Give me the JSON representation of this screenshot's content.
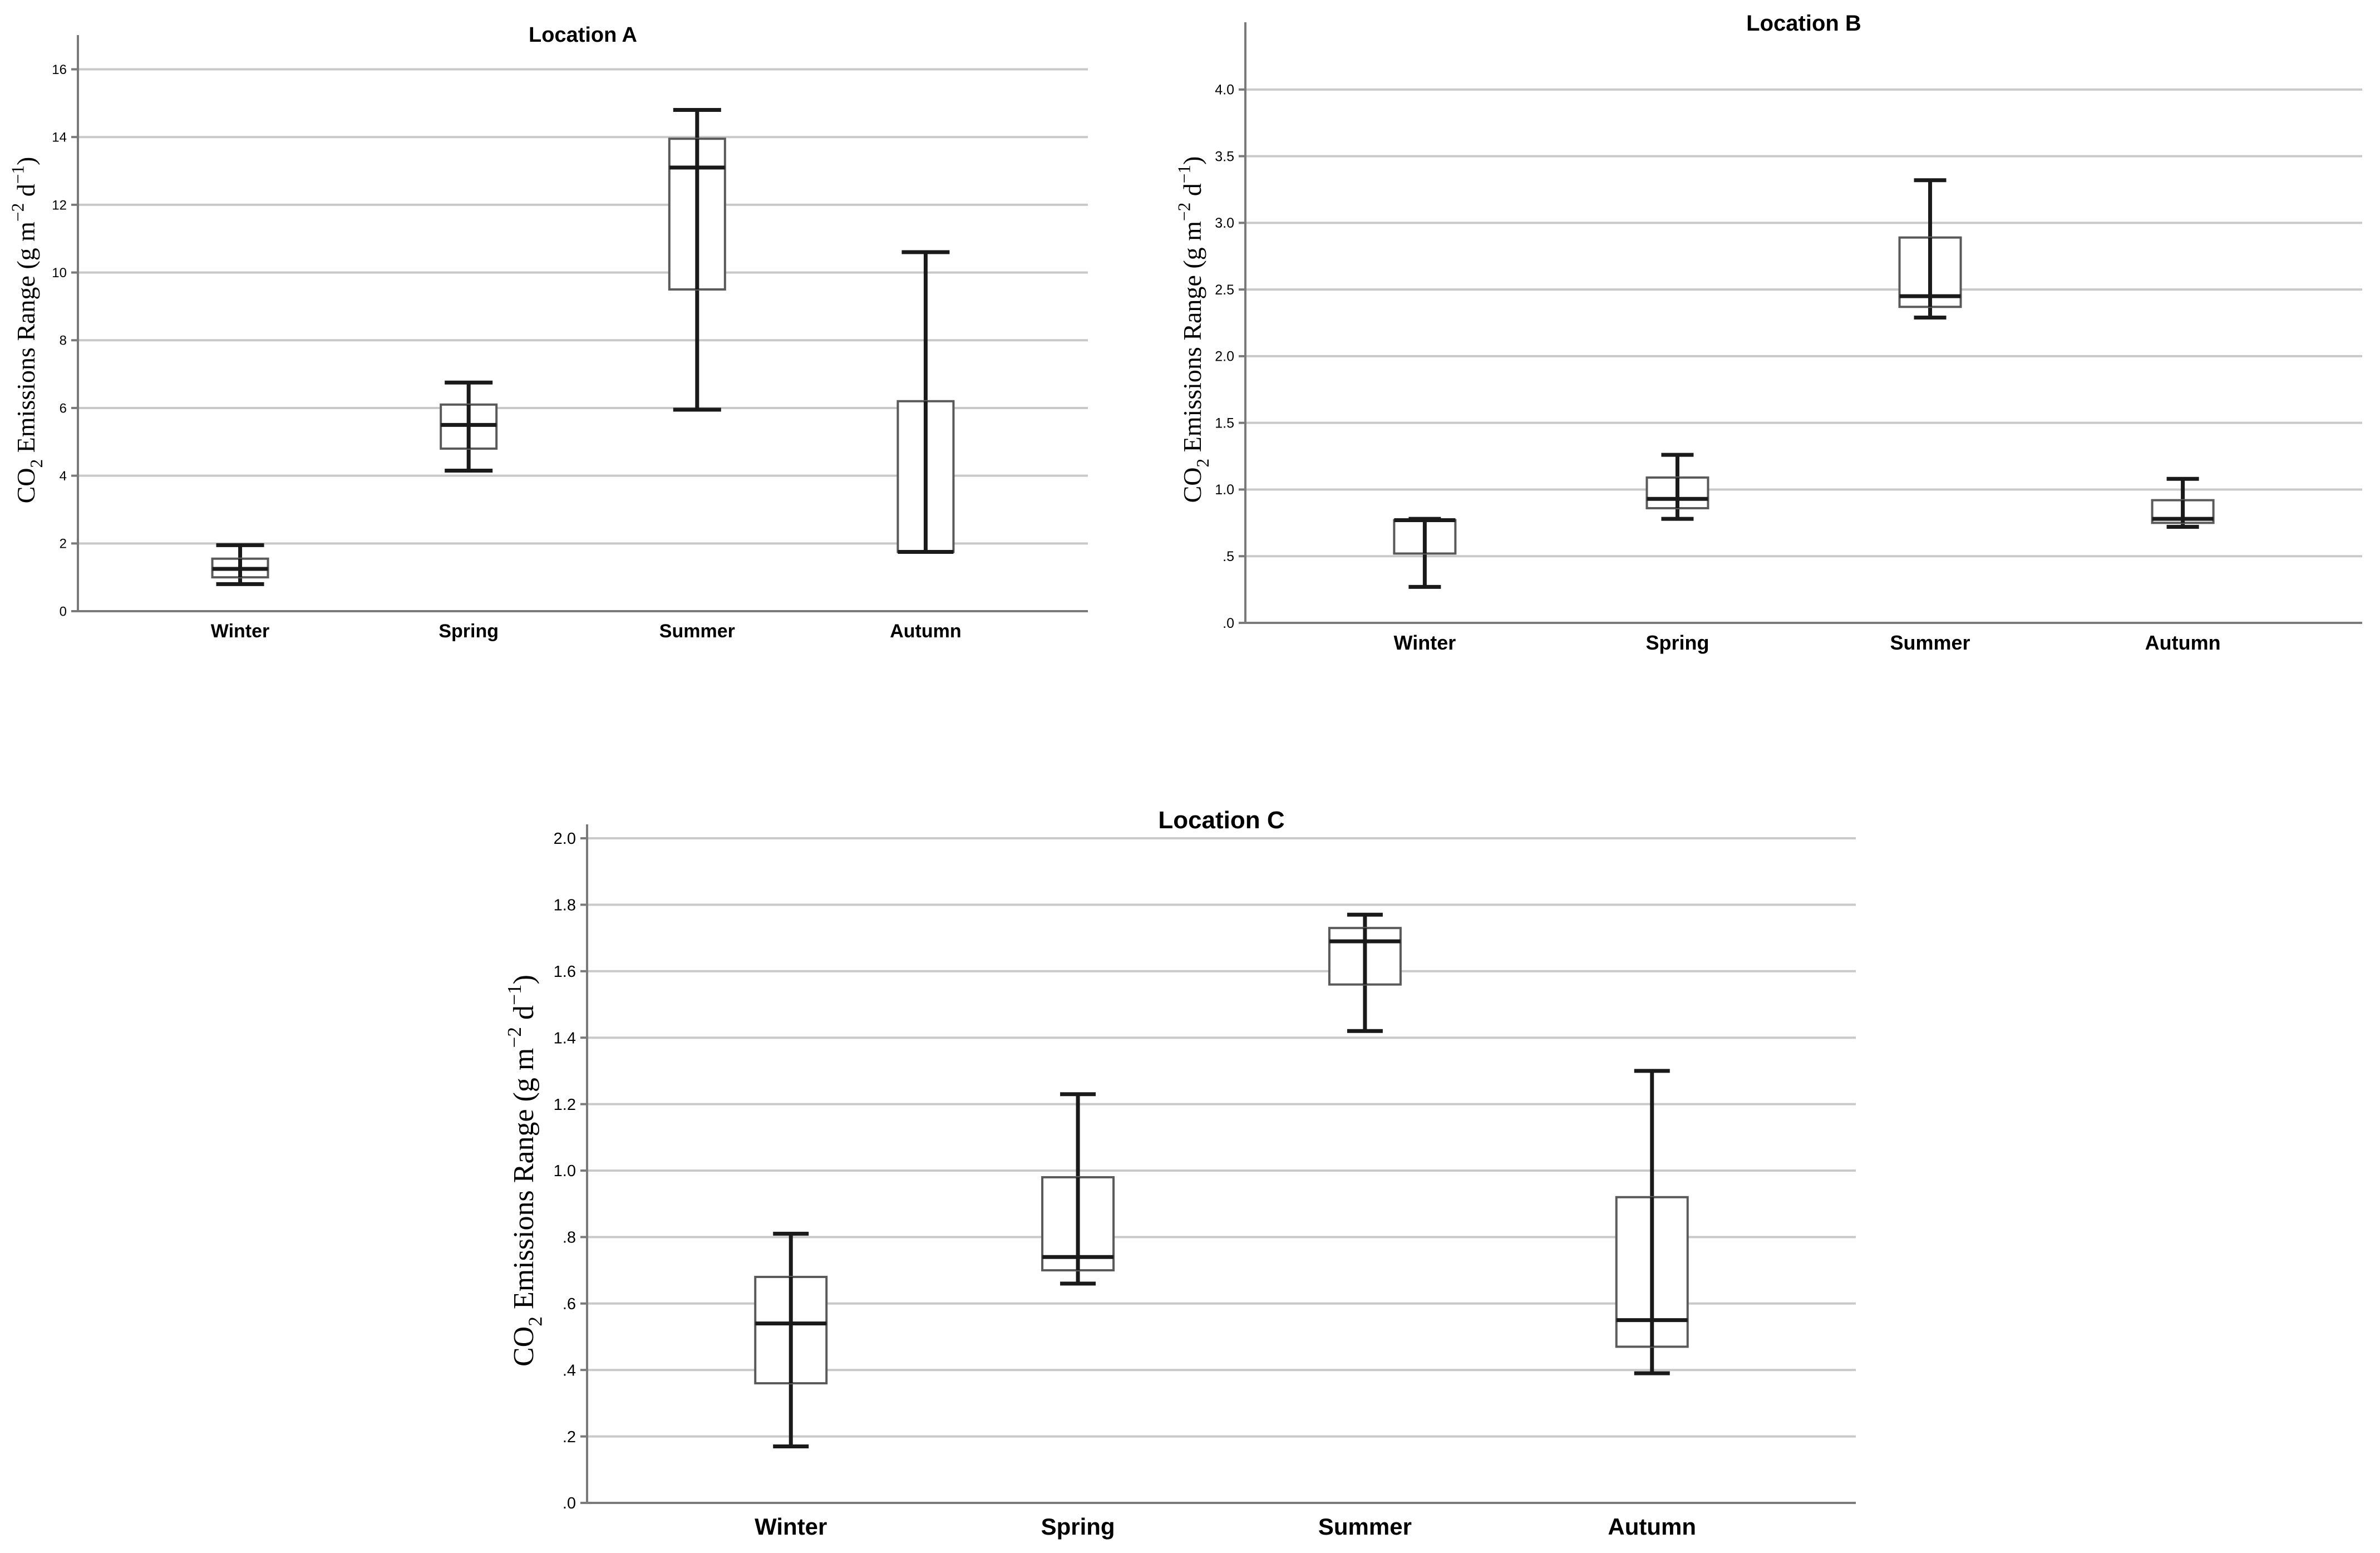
{
  "chart_data": [
    {
      "type": "boxplot",
      "title": "Location A",
      "ylabel_main": "CO",
      "ylabel_sub": "2",
      "ylabel_rest": " Emissions Range (g m",
      "ylabel_sup1": "−2",
      "ylabel_mid": " d",
      "ylabel_sup2": "−1",
      "ylabel_end": ")",
      "ylim": [
        0,
        16.6
      ],
      "ticks": [
        0,
        2,
        4,
        6,
        8,
        10,
        12,
        14,
        16
      ],
      "tick_labels": [
        "0",
        "2",
        "4",
        "6",
        "8",
        "10",
        "12",
        "14",
        "16"
      ],
      "categories": [
        "Winter",
        "Spring",
        "Summer",
        "Autumn"
      ],
      "boxes": [
        {
          "min": 0.8,
          "q1": 1.0,
          "median": 1.25,
          "q3": 1.55,
          "max": 1.95
        },
        {
          "min": 4.15,
          "q1": 4.8,
          "median": 5.5,
          "q3": 6.1,
          "max": 6.75
        },
        {
          "min": 5.95,
          "q1": 9.5,
          "median": 13.1,
          "q3": 13.95,
          "max": 14.8
        },
        {
          "min": 1.75,
          "q1": 1.75,
          "median": 1.75,
          "q3": 6.2,
          "max": 10.6
        }
      ]
    },
    {
      "type": "boxplot",
      "title": "Location B",
      "ylabel_main": "CO",
      "ylabel_sub": "2",
      "ylabel_rest": " Emissions Range (g m",
      "ylabel_sup1": "−2",
      "ylabel_mid": " d",
      "ylabel_sup2": "−1",
      "ylabel_end": ")",
      "ylim": [
        0,
        4.4
      ],
      "ticks": [
        0,
        0.5,
        1.0,
        1.5,
        2.0,
        2.5,
        3.0,
        3.5,
        4.0
      ],
      "tick_labels": [
        ".0",
        ".5",
        "1.0",
        "1.5",
        "2.0",
        "2.5",
        "3.0",
        "3.5",
        "4.0"
      ],
      "categories": [
        "Winter",
        "Spring",
        "Summer",
        "Autumn"
      ],
      "boxes": [
        {
          "min": 0.27,
          "q1": 0.52,
          "median": 0.77,
          "q3": 0.77,
          "max": 0.78
        },
        {
          "min": 0.78,
          "q1": 0.86,
          "median": 0.93,
          "q3": 1.09,
          "max": 1.26
        },
        {
          "min": 2.29,
          "q1": 2.37,
          "median": 2.45,
          "q3": 2.89,
          "max": 3.32
        },
        {
          "min": 0.72,
          "q1": 0.75,
          "median": 0.78,
          "q3": 0.92,
          "max": 1.08
        }
      ]
    },
    {
      "type": "boxplot",
      "title": "Location C",
      "ylabel_main": "CO",
      "ylabel_sub": "2",
      "ylabel_rest": " Emissions Range (g m",
      "ylabel_sup1": "−2",
      "ylabel_mid": " d",
      "ylabel_sup2": "−1",
      "ylabel_end": ")",
      "ylim": [
        0,
        2.0
      ],
      "ticks": [
        0,
        0.2,
        0.4,
        0.6,
        0.8,
        1.0,
        1.2,
        1.4,
        1.6,
        1.8,
        2.0
      ],
      "tick_labels": [
        ".0",
        ".2",
        ".4",
        ".6",
        ".8",
        "1.0",
        "1.2",
        "1.4",
        "1.6",
        "1.8",
        "2.0"
      ],
      "categories": [
        "Winter",
        "Spring",
        "Summer",
        "Autumn"
      ],
      "boxes": [
        {
          "min": 0.17,
          "q1": 0.36,
          "median": 0.54,
          "q3": 0.68,
          "max": 0.81
        },
        {
          "min": 0.66,
          "q1": 0.7,
          "median": 0.74,
          "q3": 0.98,
          "max": 1.23
        },
        {
          "min": 1.42,
          "q1": 1.56,
          "median": 1.69,
          "q3": 1.73,
          "max": 1.77
        },
        {
          "min": 0.39,
          "q1": 0.47,
          "median": 0.55,
          "q3": 0.92,
          "max": 1.3
        }
      ]
    }
  ]
}
